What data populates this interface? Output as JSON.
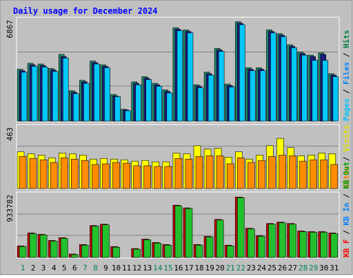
{
  "chart_data": [
    {
      "type": "bar",
      "title": "Daily usage for December 2024",
      "panel": "hits-files-pages",
      "ymax_label": "6867",
      "ylim": [
        0,
        6867
      ],
      "legend": [
        {
          "name": "Pages",
          "color": "#00c0ff"
        },
        {
          "name": "Files",
          "color": "#0080ff"
        },
        {
          "name": "Hits",
          "color": "#008040"
        }
      ],
      "categories": [
        "1",
        "2",
        "3",
        "4",
        "5",
        "6",
        "7",
        "8",
        "9",
        "10",
        "11",
        "12",
        "13",
        "14",
        "15",
        "16",
        "17",
        "18",
        "19",
        "20",
        "21",
        "22",
        "23",
        "24",
        "25",
        "26",
        "27",
        "28",
        "29",
        "30",
        "31"
      ],
      "series": [
        {
          "name": "Hits",
          "color": "#1f8a6a",
          "values": [
            3500,
            3900,
            3850,
            3550,
            4500,
            2050,
            2750,
            4050,
            3800,
            1800,
            800,
            2650,
            3000,
            2550,
            2100,
            6300,
            6150,
            2450,
            3300,
            4900,
            2500,
            6700,
            3600,
            3600,
            6150,
            5900,
            5150,
            4650,
            4450,
            4600,
            3200
          ]
        },
        {
          "name": "Files",
          "color": "#1a1a80",
          "values": [
            3400,
            3800,
            3750,
            3450,
            4350,
            1950,
            2650,
            3950,
            3700,
            1700,
            750,
            2550,
            2900,
            2450,
            2000,
            6200,
            6050,
            2350,
            3200,
            4800,
            2400,
            6600,
            3500,
            3500,
            6050,
            5800,
            5050,
            4550,
            4350,
            4500,
            3100
          ]
        },
        {
          "name": "Pages",
          "color": "#00c8f8",
          "values": [
            3300,
            3700,
            3650,
            3350,
            4250,
            1850,
            2550,
            3850,
            3600,
            1650,
            700,
            2450,
            2800,
            2350,
            1900,
            6100,
            5950,
            2250,
            3100,
            4700,
            2300,
            6500,
            3400,
            3400,
            5950,
            5700,
            4950,
            4450,
            4100,
            4100,
            3000
          ]
        }
      ]
    },
    {
      "type": "bar",
      "panel": "visits-sites",
      "ymax_label": "463",
      "ylim": [
        0,
        463
      ],
      "legend": [
        {
          "name": "Sites",
          "color": "#ff8000"
        },
        {
          "name": "Visits",
          "color": "#ffff00"
        }
      ],
      "series": [
        {
          "name": "Visits",
          "color": "#ffff00",
          "values": [
            275,
            260,
            250,
            230,
            265,
            260,
            250,
            220,
            225,
            220,
            215,
            205,
            210,
            200,
            200,
            265,
            260,
            320,
            295,
            300,
            235,
            275,
            220,
            250,
            320,
            375,
            305,
            245,
            250,
            265,
            260
          ]
        },
        {
          "name": "Sites",
          "color": "#ff8c00",
          "values": [
            240,
            225,
            215,
            195,
            230,
            220,
            210,
            180,
            185,
            195,
            190,
            170,
            170,
            165,
            165,
            225,
            220,
            240,
            245,
            245,
            185,
            230,
            195,
            210,
            240,
            250,
            245,
            205,
            215,
            215,
            180
          ]
        }
      ]
    },
    {
      "type": "bar",
      "panel": "kbytes",
      "ymax_label": "933782",
      "ylim": [
        0,
        933782
      ],
      "legend": [
        {
          "name": "KB F",
          "color": "#ff0000"
        },
        {
          "name": "KB In",
          "color": "#0080ff"
        },
        {
          "name": "KB Out",
          "color": "#00c000"
        }
      ],
      "series": [
        {
          "name": "KB F",
          "color": "#c00000",
          "values": [
            170000,
            360000,
            340000,
            250000,
            290000,
            50000,
            190000,
            470000,
            490000,
            160000,
            0,
            130000,
            270000,
            220000,
            190000,
            770000,
            730000,
            190000,
            310000,
            560000,
            180000,
            890000,
            430000,
            320000,
            500000,
            520000,
            500000,
            390000,
            380000,
            380000,
            360000
          ]
        },
        {
          "name": "KB Out",
          "color": "#22c02c",
          "values": [
            160000,
            350000,
            330000,
            240000,
            280000,
            40000,
            180000,
            460000,
            480000,
            150000,
            0,
            120000,
            260000,
            210000,
            180000,
            760000,
            720000,
            180000,
            300000,
            550000,
            170000,
            880000,
            420000,
            310000,
            490000,
            510000,
            490000,
            380000,
            370000,
            370000,
            350000
          ]
        }
      ]
    }
  ],
  "axis_right": {
    "panel1": [
      {
        "text": "Pages",
        "color": "#00c0ff"
      },
      {
        "text": " / ",
        "color": "#000000"
      },
      {
        "text": "Files",
        "color": "#0080ff"
      },
      {
        "text": " / ",
        "color": "#000000"
      },
      {
        "text": "Hits",
        "color": "#008040"
      }
    ],
    "panel2": [
      {
        "text": "Sites",
        "color": "#ff8000"
      },
      {
        "text": " / ",
        "color": "#000000"
      },
      {
        "text": "Visits",
        "color": "#e0e000"
      }
    ],
    "panel3": [
      {
        "text": "KB F",
        "color": "#ff0000"
      },
      {
        "text": " / ",
        "color": "#000000"
      },
      {
        "text": "KB In",
        "color": "#0080ff"
      },
      {
        "text": " / ",
        "color": "#000000"
      },
      {
        "text": "KB Out",
        "color": "#00a000"
      }
    ]
  },
  "x_axis": {
    "labels": [
      "1",
      "2",
      "3",
      "4",
      "5",
      "6",
      "7",
      "8",
      "9",
      "10",
      "11",
      "12",
      "13",
      "14",
      "15",
      "16",
      "17",
      "18",
      "19",
      "20",
      "21",
      "22",
      "23",
      "24",
      "25",
      "26",
      "27",
      "28",
      "29",
      "30",
      "31"
    ],
    "weekend_days": [
      "1",
      "7",
      "8",
      "14",
      "15",
      "21",
      "22",
      "28",
      "29"
    ],
    "weekday_color": "#000000",
    "weekend_color": "#00805c"
  },
  "colors": {
    "background": "#c0c0c0",
    "frame": "#ffffff",
    "title": "#0000ff",
    "grid": "#808080"
  }
}
